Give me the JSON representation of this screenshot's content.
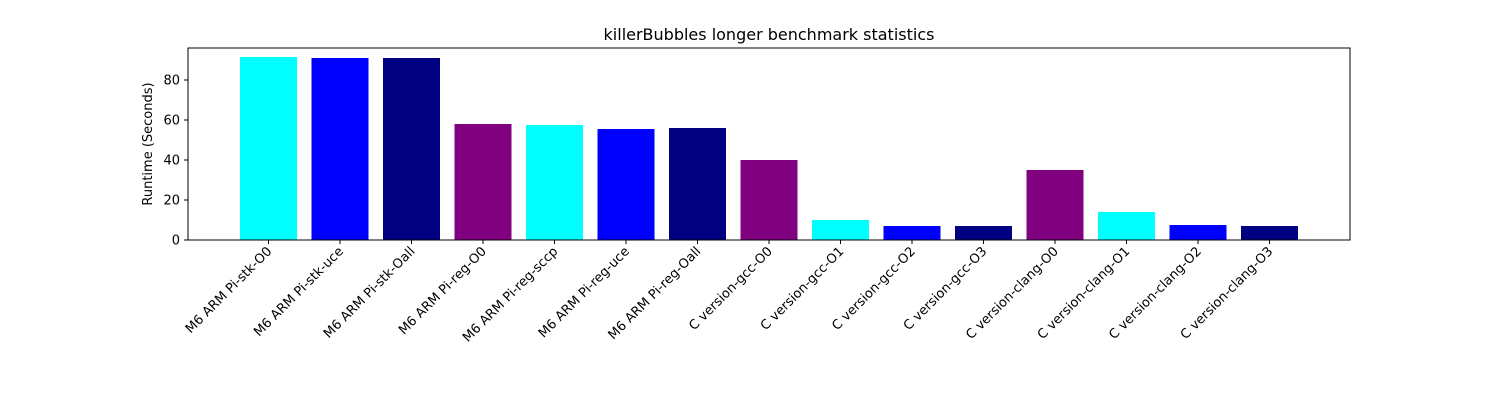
{
  "chart_data": {
    "type": "bar",
    "title": "killerBubbles longer benchmark statistics",
    "xlabel": "",
    "ylabel": "Runtime (Seconds)",
    "ylim": [
      0,
      96
    ],
    "yticks": [
      0,
      20,
      40,
      60,
      80
    ],
    "grid": false,
    "categories": [
      "M6 ARM Pi-stk-O0",
      "M6 ARM Pi-stk-uce",
      "M6 ARM Pi-stk-Oall",
      "M6 ARM Pi-reg-O0",
      "M6 ARM Pi-reg-sccp",
      "M6 ARM Pi-reg-uce",
      "M6 ARM Pi-reg-Oall",
      "C version-gcc-O0",
      "C version-gcc-O1",
      "C version-gcc-O2",
      "C version-gcc-O3",
      "C version-clang-O0",
      "C version-clang-O1",
      "C version-clang-O2",
      "C version-clang-O3"
    ],
    "values": [
      91.5,
      91.0,
      91.0,
      58.0,
      57.5,
      55.5,
      56.0,
      40.0,
      10.0,
      7.0,
      7.0,
      35.0,
      14.0,
      7.5,
      7.0
    ],
    "colors": [
      "#00ffff",
      "#0000ff",
      "#000080",
      "#800080",
      "#00ffff",
      "#0000ff",
      "#000080",
      "#800080",
      "#00ffff",
      "#0000ff",
      "#000080",
      "#800080",
      "#00ffff",
      "#0000ff",
      "#000080"
    ]
  }
}
